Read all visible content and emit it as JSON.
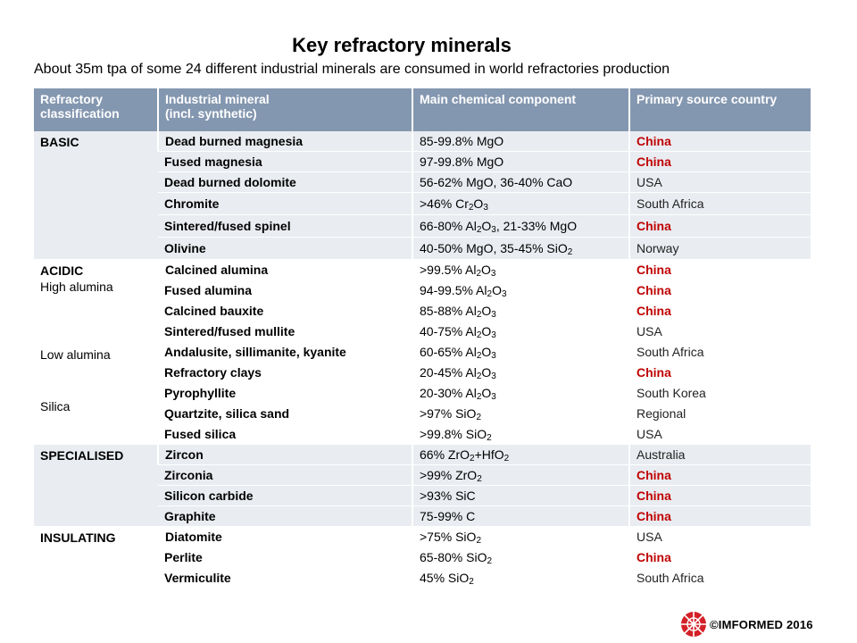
{
  "title": "Key refractory minerals",
  "subtitle": "About 35m tpa of some 24 different industrial minerals are consumed in world refractories production",
  "headers": [
    "Refractory classification",
    "Industrial mineral (incl. synthetic)",
    "Main chemical component",
    "Primary source country"
  ],
  "header_lines": [
    [
      "Refractory",
      "classification"
    ],
    [
      "Industrial mineral",
      "(incl. synthetic)"
    ],
    [
      "Main chemical component"
    ],
    [
      "Primary source country"
    ]
  ],
  "groups": [
    {
      "classification": "BASIC",
      "sublabels": [],
      "shaded": true,
      "rows": [
        {
          "mineral": "Dead burned magnesia",
          "component": "85-99.8% MgO",
          "country": "China",
          "highlight": true
        },
        {
          "mineral": "Fused magnesia",
          "component": "97-99.8% MgO",
          "country": "China",
          "highlight": true
        },
        {
          "mineral": "Dead burned dolomite",
          "component": "56-62% MgO, 36-40% CaO",
          "country": "USA",
          "highlight": false
        },
        {
          "mineral": "Chromite",
          "component": ">46% Cr2O3",
          "country": "South Africa",
          "highlight": false
        },
        {
          "mineral": "Sintered/fused spinel",
          "component": "66-80% Al2O3, 21-33% MgO",
          "country": "China",
          "highlight": true
        },
        {
          "mineral": "Olivine",
          "component": "40-50% MgO, 35-45% SiO2",
          "country": "Norway",
          "highlight": false
        }
      ]
    },
    {
      "classification": "ACIDIC",
      "sublabels": [
        "High alumina",
        "Low alumina",
        "Silica"
      ],
      "shaded": false,
      "rows": [
        {
          "mineral": "Calcined alumina",
          "component": ">99.5% Al2O3",
          "country": "China",
          "highlight": true
        },
        {
          "mineral": "Fused alumina",
          "component": "94-99.5% Al2O3",
          "country": "China",
          "highlight": true
        },
        {
          "mineral": "Calcined bauxite",
          "component": "85-88% Al2O3",
          "country": "China",
          "highlight": true
        },
        {
          "mineral": "Sintered/fused mullite",
          "component": "40-75% Al2O3",
          "country": "USA",
          "highlight": false
        },
        {
          "mineral": "Andalusite, sillimanite, kyanite",
          "component": "60-65% Al2O3",
          "country": "South Africa",
          "highlight": false
        },
        {
          "mineral": "Refractory clays",
          "component": "20-45% Al2O3",
          "country": "China",
          "highlight": true
        },
        {
          "mineral": "Pyrophyllite",
          "component": "20-30% Al2O3",
          "country": "South Korea",
          "highlight": false
        },
        {
          "mineral": "Quartzite, silica sand",
          "component": ">97% SiO2",
          "country": "Regional",
          "highlight": false
        },
        {
          "mineral": "Fused silica",
          "component": ">99.8% SiO2",
          "country": "USA",
          "highlight": false
        }
      ]
    },
    {
      "classification": "SPECIALISED",
      "sublabels": [],
      "shaded": true,
      "rows": [
        {
          "mineral": "Zircon",
          "component": "66% ZrO2+HfO2",
          "country": "Australia",
          "highlight": false
        },
        {
          "mineral": "Zirconia",
          "component": ">99% ZrO2",
          "country": "China",
          "highlight": true
        },
        {
          "mineral": "Silicon carbide",
          "component": ">93% SiC",
          "country": "China",
          "highlight": true
        },
        {
          "mineral": "Graphite",
          "component": "75-99% C",
          "country": "China",
          "highlight": true
        }
      ]
    },
    {
      "classification": "INSULATING",
      "sublabels": [],
      "shaded": false,
      "rows": [
        {
          "mineral": "Diatomite",
          "component": ">75% SiO2",
          "country": "USA",
          "highlight": false
        },
        {
          "mineral": "Perlite",
          "component": "65-80% SiO2",
          "country": "China",
          "highlight": true
        },
        {
          "mineral": "Vermiculite",
          "component": "45% SiO2",
          "country": "South Africa",
          "highlight": false
        }
      ]
    }
  ],
  "footer": {
    "copyright": "©IMFORMED 2016",
    "logo": "imformed-logo-icon"
  },
  "colors": {
    "header_bg": "#8497b0",
    "shaded_row": "#e9ecf1",
    "highlight_text": "#c00000",
    "logo_red": "#d42027"
  }
}
